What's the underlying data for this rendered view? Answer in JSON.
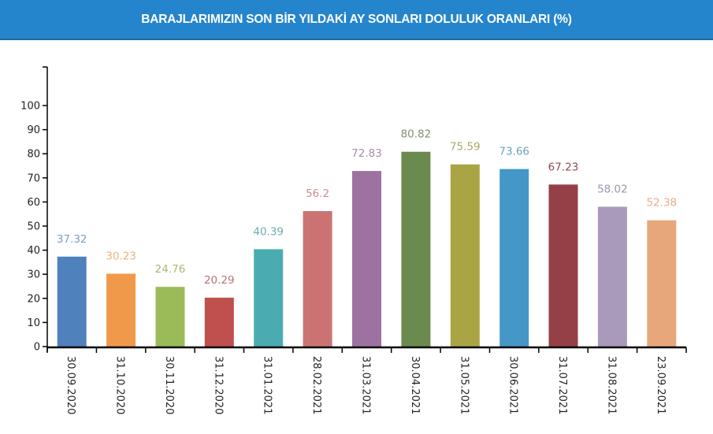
{
  "header": {
    "title": "BARAJLARIMIZIN SON BİR YILDAKİ AY SONLARI DOLULUK ORANLARI (%)",
    "background": "#2585cc"
  },
  "chart_data": {
    "type": "bar",
    "title": "BARAJLARIMIZIN SON BİR YILDAKİ AY SONLARI DOLULUK ORANLARI (%)",
    "xlabel": "",
    "ylabel": "",
    "ylim": [
      0,
      116
    ],
    "yticks": [
      0,
      10,
      20,
      30,
      40,
      50,
      60,
      70,
      80,
      90,
      100
    ],
    "grid": false,
    "legend": null,
    "categories": [
      "30.09.2020",
      "31.10.2020",
      "30.11.2020",
      "31.12.2020",
      "31.01.2021",
      "28.02.2021",
      "31.03.2021",
      "30.04.2021",
      "31.05.2021",
      "30.06.2021",
      "31.07.2021",
      "31.08.2021",
      "23.09.2021"
    ],
    "values": [
      37.32,
      30.23,
      24.76,
      20.29,
      40.39,
      56.2,
      72.83,
      80.82,
      75.59,
      73.66,
      67.23,
      58.02,
      52.38
    ],
    "value_labels": [
      "37.32",
      "30.23",
      "24.76",
      "20.29",
      "40.39",
      "56.2",
      "72.83",
      "80.82",
      "75.59",
      "73.66",
      "67.23",
      "58.02",
      "52.38"
    ],
    "colors": [
      "#4f81bd",
      "#f0994a",
      "#9bbb59",
      "#c0504d",
      "#4aacb0",
      "#cb7373",
      "#9e72a0",
      "#6b8a4d",
      "#aaa544",
      "#4497c7",
      "#953f46",
      "#a99abb",
      "#e8a77a"
    ],
    "label_colors": [
      "#7d9cc4",
      "#ecb27e",
      "#a8b86f",
      "#b8727a",
      "#6cadb0",
      "#cc8c8c",
      "#a889a8",
      "#7e8f6c",
      "#aaa765",
      "#6a9fc0",
      "#8c4b55",
      "#9e94ae",
      "#e6ae8c"
    ]
  }
}
